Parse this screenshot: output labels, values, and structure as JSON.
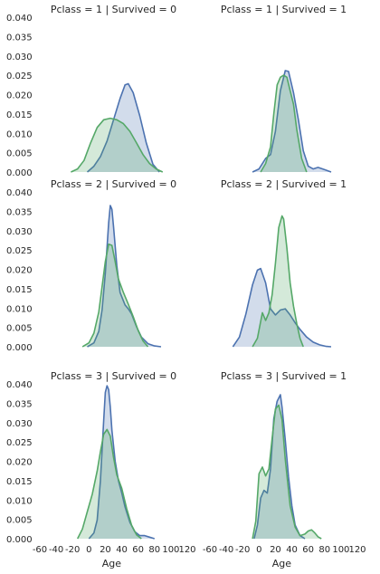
{
  "chart_data": {
    "type": "area",
    "xlabel": "Age",
    "x_ticks": [
      -60,
      -40,
      -20,
      0,
      20,
      40,
      60,
      80,
      100,
      120
    ],
    "y_ticks": [
      0.0,
      0.005,
      0.01,
      0.015,
      0.02,
      0.025,
      0.03,
      0.035,
      0.04
    ],
    "y_tick_labels": [
      "0.000",
      "0.005",
      "0.010",
      "0.015",
      "0.020",
      "0.025",
      "0.030",
      "0.035",
      "0.040"
    ],
    "xlim": [
      -60,
      120
    ],
    "ylim": [
      0,
      0.04
    ],
    "grid": false,
    "series_colors": [
      "#4c72b0",
      "#55a868"
    ],
    "panels": [
      {
        "title": "Pclass = 1 | Survived = 0",
        "series": [
          {
            "color": "#4c72b0",
            "x": [
              -2,
              6,
              14,
              22,
              30,
              38,
              44,
              48,
              54,
              62,
              70,
              78,
              86
            ],
            "y": [
              0.0,
              0.0015,
              0.004,
              0.008,
              0.0135,
              0.019,
              0.0225,
              0.0228,
              0.0205,
              0.0145,
              0.0075,
              0.002,
              0.0
            ]
          },
          {
            "color": "#55a868",
            "x": [
              -22,
              -14,
              -6,
              2,
              10,
              18,
              26,
              34,
              42,
              50,
              58,
              66,
              74,
              82,
              90
            ],
            "y": [
              0.0,
              0.0008,
              0.003,
              0.0075,
              0.0115,
              0.0135,
              0.0139,
              0.0135,
              0.0125,
              0.0105,
              0.0075,
              0.0045,
              0.0022,
              0.0008,
              0.0
            ]
          }
        ]
      },
      {
        "title": "Pclass = 1 | Survived = 1",
        "series": [
          {
            "color": "#4c72b0",
            "x": [
              -8,
              0,
              8,
              14,
              20,
              26,
              32,
              36,
              42,
              48,
              54,
              60,
              66,
              72,
              80,
              88
            ],
            "y": [
              0.0,
              0.0008,
              0.0035,
              0.0045,
              0.0105,
              0.021,
              0.0262,
              0.026,
              0.0205,
              0.0135,
              0.0055,
              0.0015,
              0.0008,
              0.0012,
              0.0006,
              0.0
            ]
          },
          {
            "color": "#55a868",
            "x": [
              2,
              8,
              14,
              18,
              22,
              26,
              30,
              34,
              38,
              42,
              46,
              52,
              58
            ],
            "y": [
              0.0,
              0.0022,
              0.0065,
              0.015,
              0.0225,
              0.0245,
              0.025,
              0.0245,
              0.021,
              0.0175,
              0.011,
              0.0035,
              0.0
            ]
          }
        ]
      },
      {
        "title": "Pclass = 2 | Survived = 0",
        "series": [
          {
            "color": "#4c72b0",
            "x": [
              -2,
              6,
              12,
              16,
              20,
              24,
              26,
              28,
              30,
              34,
              38,
              44,
              48,
              52,
              58,
              64,
              72,
              80,
              88
            ],
            "y": [
              0.0,
              0.001,
              0.004,
              0.0095,
              0.019,
              0.032,
              0.0365,
              0.0355,
              0.031,
              0.021,
              0.014,
              0.0108,
              0.0098,
              0.0085,
              0.0052,
              0.0025,
              0.0008,
              0.0002,
              0.0
            ]
          },
          {
            "color": "#55a868",
            "x": [
              -8,
              0,
              6,
              12,
              16,
              20,
              24,
              28,
              32,
              36,
              42,
              48,
              54,
              60,
              66,
              72
            ],
            "y": [
              0.0,
              0.001,
              0.0035,
              0.009,
              0.0155,
              0.022,
              0.0265,
              0.0262,
              0.022,
              0.0175,
              0.014,
              0.011,
              0.0078,
              0.0042,
              0.0015,
              0.0
            ]
          }
        ]
      },
      {
        "title": "Pclass = 2 | Survived = 1",
        "series": [
          {
            "color": "#4c72b0",
            "x": [
              -32,
              -24,
              -16,
              -8,
              -2,
              2,
              8,
              14,
              20,
              26,
              32,
              38,
              44,
              50,
              58,
              66,
              74,
              82,
              88
            ],
            "y": [
              0.0,
              0.0025,
              0.0085,
              0.016,
              0.0198,
              0.0202,
              0.0165,
              0.0098,
              0.0082,
              0.0095,
              0.0098,
              0.0082,
              0.0062,
              0.0045,
              0.0025,
              0.0012,
              0.0005,
              0.0001,
              0.0
            ]
          },
          {
            "color": "#55a868",
            "x": [
              -8,
              -2,
              4,
              8,
              12,
              16,
              20,
              24,
              28,
              30,
              34,
              38,
              42,
              46,
              50,
              54
            ],
            "y": [
              0.0,
              0.0022,
              0.0088,
              0.0068,
              0.0088,
              0.0135,
              0.0215,
              0.0308,
              0.0338,
              0.033,
              0.0255,
              0.0165,
              0.0105,
              0.006,
              0.0022,
              0.0
            ]
          }
        ]
      },
      {
        "title": "Pclass = 3 | Survived = 0",
        "series": [
          {
            "color": "#4c72b0",
            "x": [
              0,
              6,
              10,
              14,
              18,
              20,
              22,
              24,
              26,
              28,
              32,
              36,
              40,
              44,
              50,
              56,
              62,
              68,
              74,
              80
            ],
            "y": [
              0.0,
              0.0015,
              0.0048,
              0.015,
              0.0305,
              0.0378,
              0.0395,
              0.0385,
              0.034,
              0.028,
              0.02,
              0.015,
              0.0118,
              0.0082,
              0.0042,
              0.0018,
              0.0008,
              0.0008,
              0.0004,
              0.0
            ]
          },
          {
            "color": "#55a868",
            "x": [
              -14,
              -8,
              -2,
              4,
              10,
              14,
              18,
              22,
              26,
              30,
              34,
              40,
              46,
              52,
              58,
              64
            ],
            "y": [
              0.0,
              0.0025,
              0.007,
              0.0115,
              0.0175,
              0.0225,
              0.027,
              0.0282,
              0.0265,
              0.021,
              0.0165,
              0.013,
              0.0078,
              0.0035,
              0.001,
              0.0
            ]
          }
        ]
      },
      {
        "title": "Pclass = 3 | Survived = 1",
        "series": [
          {
            "color": "#4c72b0",
            "x": [
              -6,
              -2,
              2,
              6,
              10,
              14,
              18,
              22,
              26,
              28,
              32,
              36,
              40,
              44,
              50,
              56
            ],
            "y": [
              0.0,
              0.0035,
              0.0105,
              0.0125,
              0.0118,
              0.018,
              0.031,
              0.0355,
              0.0372,
              0.034,
              0.0255,
              0.016,
              0.0085,
              0.0035,
              0.0008,
              0.0
            ]
          },
          {
            "color": "#55a868",
            "x": [
              -8,
              -4,
              0,
              4,
              8,
              12,
              16,
              20,
              24,
              28,
              32,
              38,
              44,
              50,
              56,
              60,
              64,
              68,
              72,
              76
            ],
            "y": [
              0.0,
              0.0045,
              0.0168,
              0.0185,
              0.0162,
              0.018,
              0.026,
              0.0335,
              0.0345,
              0.0308,
              0.0205,
              0.0085,
              0.003,
              0.0008,
              0.0012,
              0.002,
              0.0023,
              0.0015,
              0.0005,
              0.0
            ]
          }
        ]
      }
    ]
  }
}
